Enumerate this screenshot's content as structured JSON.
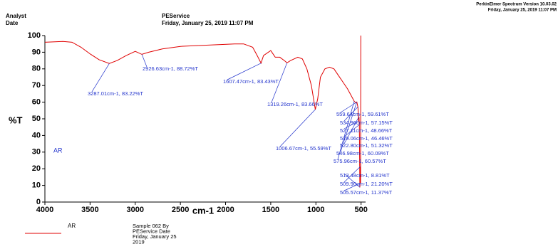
{
  "header": {
    "analyst_label": "Analyst",
    "date_label": "Date",
    "analyst": "PEService",
    "date": "Friday, January 25, 2019 11:07 PM",
    "software": "PerkinElmer Spectrum Version 10.03.02",
    "printed": "Friday, January 25, 2019 11:07 PM"
  },
  "chart_data": {
    "type": "line",
    "x_label": "cm-1",
    "y_label": "%T",
    "xlim": [
      4000,
      450
    ],
    "xticks": [
      4000,
      3500,
      3000,
      2500,
      2000,
      1500,
      1000,
      500
    ],
    "ylim": [
      0,
      100
    ],
    "yticks": [
      0,
      10,
      20,
      30,
      40,
      50,
      60,
      70,
      80,
      90,
      100
    ],
    "x": [
      4000,
      3800,
      3700,
      3600,
      3500,
      3400,
      3287.01,
      3200,
      3100,
      3000,
      2926.63,
      2850,
      2700,
      2500,
      2300,
      2100,
      1900,
      1800,
      1700,
      1650,
      1607.47,
      1580,
      1500,
      1450,
      1400,
      1350,
      1319.26,
      1280,
      1200,
      1150,
      1100,
      1050,
      1006.67,
      980,
      950,
      900,
      850,
      800,
      750,
      700,
      650,
      600,
      575.96,
      559.64,
      546.98,
      534.96,
      527.11,
      522.8,
      519.06,
      513.48,
      509.9,
      505.57,
      503
    ],
    "series": [
      {
        "name": "AR",
        "color": "#e00000",
        "values": [
          96,
          96.5,
          96,
          93,
          89,
          85.5,
          83.22,
          85,
          88,
          90.5,
          88.72,
          90,
          92,
          93.5,
          94,
          94.5,
          95,
          95,
          93,
          88,
          83.43,
          88,
          91,
          87,
          87,
          85,
          83.66,
          85,
          87,
          86,
          80,
          70,
          55.59,
          62,
          75,
          80,
          81,
          80,
          76,
          72,
          68,
          63,
          60.57,
          59.61,
          60.09,
          57.15,
          48.66,
          51.32,
          46.46,
          8.81,
          21.2,
          11.37,
          100
        ]
      }
    ],
    "annotations": [
      {
        "x": 2926.63,
        "y": 88.72,
        "label": "2926.63cm-1, 88.72%T"
      },
      {
        "x": 3287.01,
        "y": 83.22,
        "label": "3287.01cm-1, 83.22%T"
      },
      {
        "x": 1607.47,
        "y": 83.43,
        "label": "1607.47cm-1, 83.43%T"
      },
      {
        "x": 1319.26,
        "y": 83.66,
        "label": "1319.26cm-1, 83.66%T"
      },
      {
        "x": 1006.67,
        "y": 55.59,
        "label": "1006.67cm-1, 55.59%T"
      },
      {
        "x": 559.64,
        "y": 59.61,
        "label": "559.64cm-1, 59.61%T"
      },
      {
        "x": 534.96,
        "y": 57.15,
        "label": "534.96cm-1, 57.15%T"
      },
      {
        "x": 527.11,
        "y": 48.66,
        "label": "527.11cm-1, 48.66%T"
      },
      {
        "x": 519.06,
        "y": 46.46,
        "label": "519.06cm-1, 46.46%T"
      },
      {
        "x": 522.8,
        "y": 51.32,
        "label": "522.80cm-1, 51.32%T"
      },
      {
        "x": 546.98,
        "y": 60.09,
        "label": "546.98cm-1, 60.09%T"
      },
      {
        "x": 575.96,
        "y": 60.57,
        "label": "575.96cm-1, 60.57%T"
      },
      {
        "x": 513.48,
        "y": 8.81,
        "label": "513.48cm-1, 8.81%T"
      },
      {
        "x": 509.9,
        "y": 21.2,
        "label": "509.90cm-1, 21.20%T"
      },
      {
        "x": 505.57,
        "y": 11.37,
        "label": "505.57cm-1, 11.37%T"
      }
    ],
    "legend_note": [
      "Sample 062 By",
      "PEService Date",
      "Friday, January 25",
      "2019"
    ]
  }
}
